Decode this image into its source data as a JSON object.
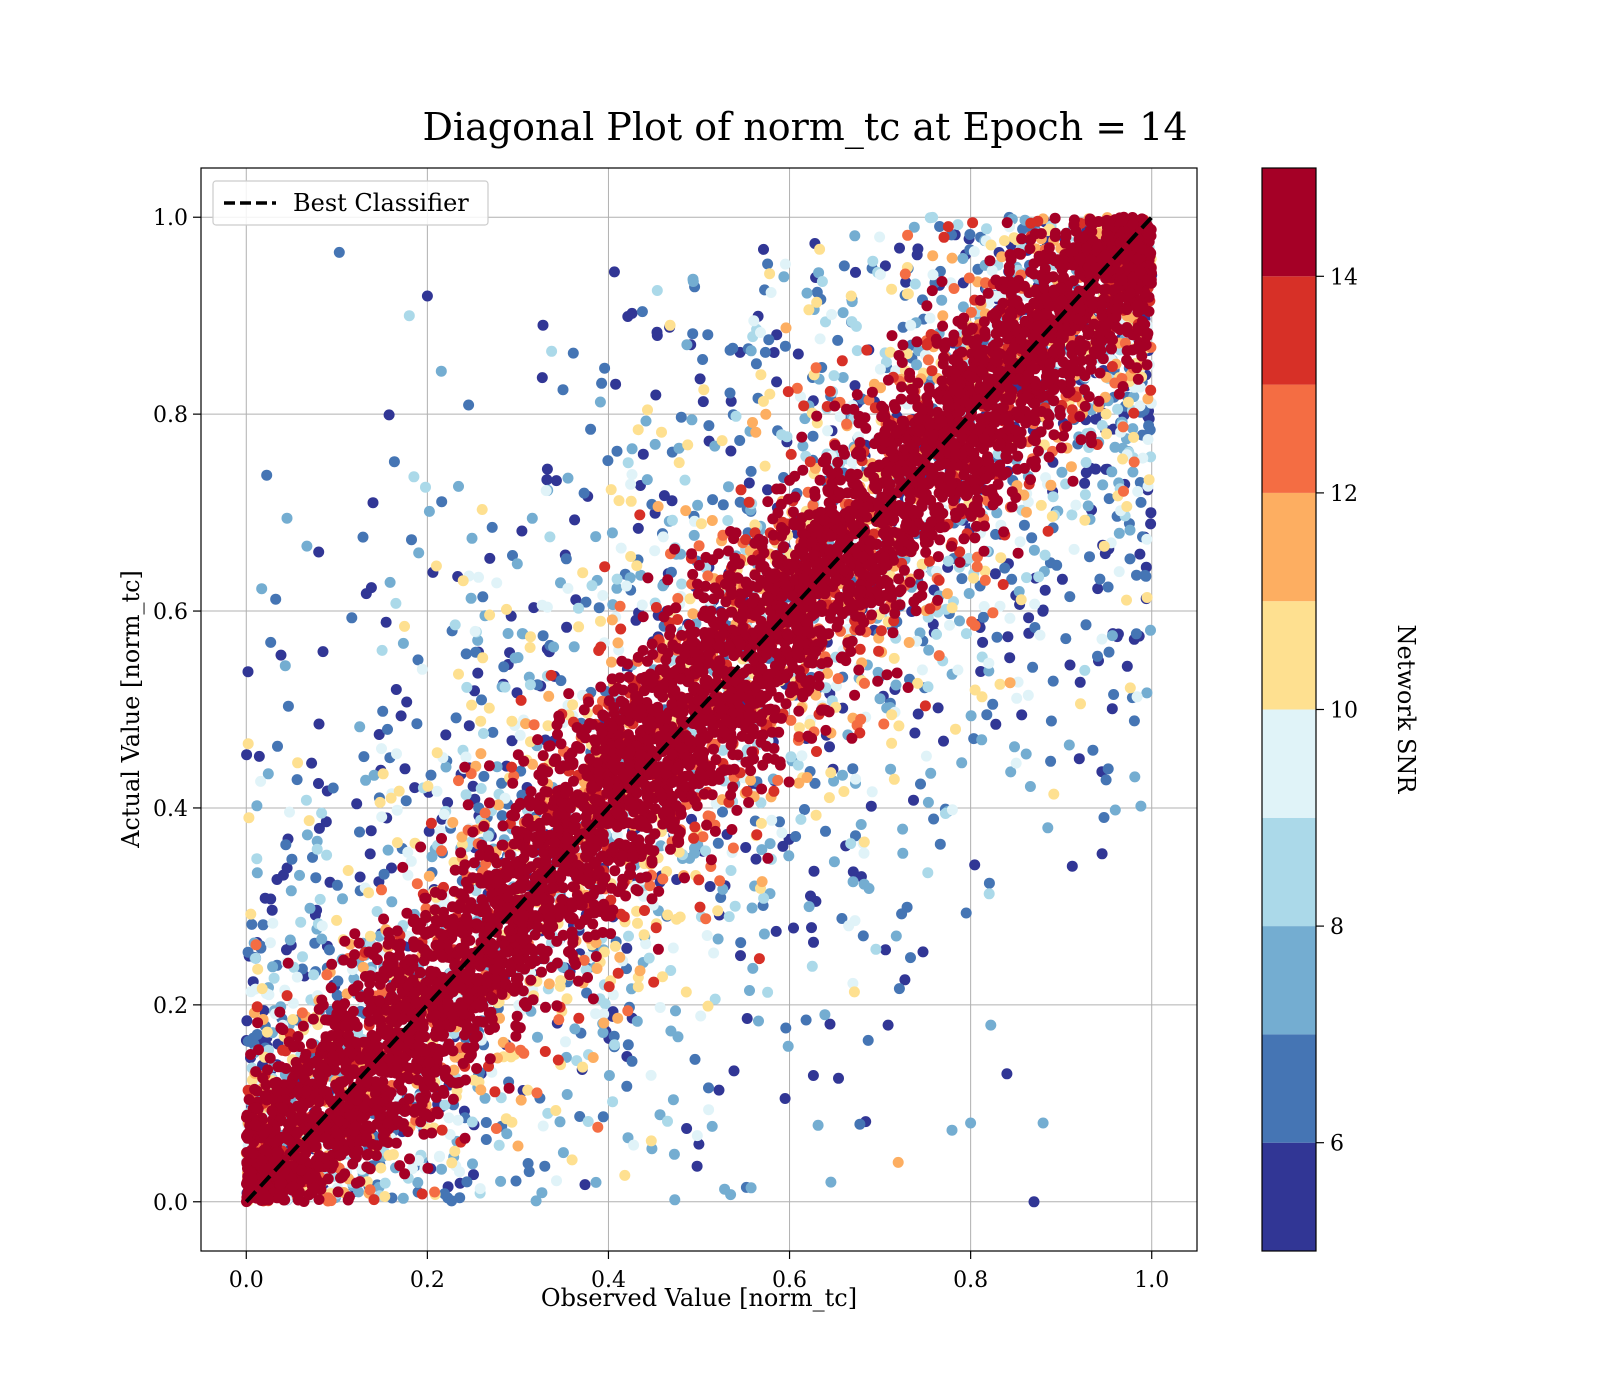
{
  "chart_data": {
    "type": "scatter",
    "title": "Diagonal Plot of norm_tc at Epoch = 14",
    "xlabel": "Observed Value [norm_tc]",
    "ylabel": "Actual Value [norm_tc]",
    "xlim": [
      -0.05,
      1.05
    ],
    "ylim": [
      -0.05,
      1.05
    ],
    "xticks": [
      "0.0",
      "0.2",
      "0.4",
      "0.6",
      "0.8",
      "1.0"
    ],
    "yticks": [
      "0.0",
      "0.2",
      "0.4",
      "0.6",
      "0.8",
      "1.0"
    ],
    "grid": true,
    "legend": {
      "position": "top-left",
      "entries": [
        "Best Classifier"
      ]
    },
    "reference_line": {
      "name": "Best Classifier",
      "style": "dashed",
      "color": "#000000",
      "points": [
        [
          0,
          0
        ],
        [
          1,
          1
        ]
      ]
    },
    "colorbar": {
      "label": "Network SNR",
      "range": [
        5,
        15
      ],
      "boundaries": [
        5,
        6,
        7,
        8,
        9,
        10,
        11,
        12,
        13,
        14,
        15
      ],
      "tick_values": [
        6,
        8,
        10,
        12,
        14
      ],
      "tick_labels": [
        "6",
        "8",
        "10",
        "12",
        "14"
      ],
      "colors": [
        "#313695",
        "#4575b4",
        "#74add1",
        "#abd9e9",
        "#e0f3f8",
        "#fee090",
        "#fdae61",
        "#f46d43",
        "#d73027",
        "#a50026"
      ]
    },
    "series_description_points": [
      [
        0.08,
        0.66,
        5.5
      ],
      [
        0.14,
        0.71,
        5.5
      ],
      [
        0.92,
        0.45,
        5.5
      ],
      [
        0.87,
        0.0,
        5.5
      ],
      [
        0.75,
        0.86,
        9.5
      ],
      [
        0.95,
        0.78,
        10
      ],
      [
        0.15,
        0.56,
        8
      ],
      [
        0.16,
        0.41,
        10.5
      ],
      [
        0.2,
        0.92,
        5.5
      ],
      [
        0.18,
        0.9,
        8
      ],
      [
        0.72,
        0.04,
        11.5
      ],
      [
        0.84,
        0.13,
        5.5
      ],
      [
        0.88,
        0.08,
        7
      ],
      [
        0.8,
        0.08,
        7.5
      ],
      [
        0.98,
        0.99,
        14.5
      ],
      [
        0.02,
        0.02,
        14.5
      ]
    ]
  }
}
